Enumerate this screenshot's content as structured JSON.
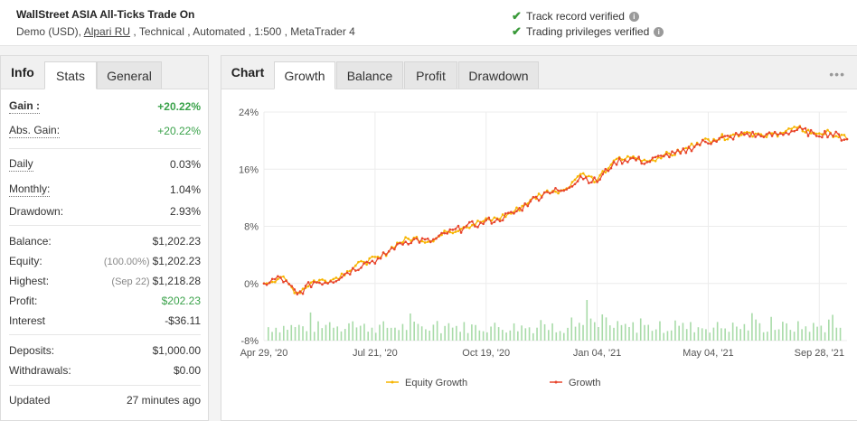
{
  "header": {
    "title": "WallStreet ASIA All-Ticks Trade On",
    "account_type": "Demo (USD), ",
    "broker": "Alpari RU",
    "details": " , Technical , Automated , 1:500 , MetaTrader 4",
    "verifications": [
      "Track record verified",
      "Trading privileges verified"
    ]
  },
  "left_tabs": [
    "Info",
    "Stats",
    "General"
  ],
  "stats": {
    "gain_label": "Gain :",
    "gain": "+20.22%",
    "abs_gain_label": "Abs. Gain:",
    "abs_gain": "+20.22%",
    "daily_label": "Daily",
    "daily": "0.03%",
    "monthly_label": "Monthly:",
    "monthly": "1.04%",
    "drawdown_label": "Drawdown:",
    "drawdown": "2.93%",
    "balance_label": "Balance:",
    "balance": "$1,202.23",
    "equity_label": "Equity:",
    "equity_pct": "(100.00%)",
    "equity": "$1,202.23",
    "highest_label": "Highest:",
    "highest_date": "(Sep 22)",
    "highest": "$1,218.28",
    "profit_label": "Profit:",
    "profit": "$202.23",
    "interest_label": "Interest",
    "interest": "-$36.11",
    "deposits_label": "Deposits:",
    "deposits": "$1,000.00",
    "withdrawals_label": "Withdrawals:",
    "withdrawals": "$0.00",
    "updated_label": "Updated",
    "updated": "27 minutes ago"
  },
  "chart_tabs": [
    "Chart",
    "Growth",
    "Balance",
    "Profit",
    "Drawdown"
  ],
  "menu_icon": "more-dots-icon",
  "colors": {
    "growth": "#e8452c",
    "equity": "#f7b500",
    "bars": "#a8dba8",
    "positive": "#3aa24a"
  },
  "chart_data": {
    "type": "line",
    "y_ticks": [
      "24%",
      "16%",
      "8%",
      "0%",
      "-8%"
    ],
    "ylim": [
      -8,
      24
    ],
    "x_ticks": [
      "Apr 29, '20",
      "Jul 21, '20",
      "Oct 19, '20",
      "Jan 04, '21",
      "May 04, '21",
      "Sep 28, '21"
    ],
    "x_indices": [
      0,
      1,
      2,
      3,
      4,
      5
    ],
    "legend": [
      "Equity Growth",
      "Growth"
    ],
    "legend_position": "bottom",
    "series": [
      {
        "name": "Growth",
        "x": [
          0,
          0.15,
          0.3,
          0.45,
          0.6,
          0.75,
          0.9,
          1.05,
          1.2,
          1.35,
          1.5,
          1.65,
          1.8,
          1.95,
          2.1,
          2.25,
          2.4,
          2.55,
          2.7,
          2.85,
          3.0,
          3.15,
          3.3,
          3.45,
          3.6,
          3.75,
          3.9,
          4.05,
          4.2,
          4.35,
          4.5,
          4.65,
          4.8,
          4.95,
          5.1,
          5.25
        ],
        "y": [
          0.0,
          0.8,
          -1.5,
          0.2,
          0.3,
          1.5,
          2.8,
          3.5,
          5.5,
          6.2,
          5.8,
          7.0,
          7.8,
          8.5,
          9.0,
          9.8,
          11.5,
          12.8,
          13.0,
          15.0,
          14.2,
          17.0,
          17.5,
          17.0,
          17.8,
          18.2,
          19.5,
          20.0,
          20.5,
          21.0,
          20.5,
          21.0,
          21.5,
          21.0,
          21.0,
          20.2
        ]
      },
      {
        "name": "Equity Growth",
        "x": [
          0,
          0.15,
          0.3,
          0.45,
          0.6,
          0.75,
          0.9,
          1.05,
          1.2,
          1.35,
          1.5,
          1.65,
          1.8,
          1.95,
          2.1,
          2.25,
          2.4,
          2.55,
          2.7,
          2.85,
          3.0,
          3.15,
          3.3,
          3.45,
          3.6,
          3.75,
          3.9,
          4.05,
          4.2,
          4.35,
          4.5,
          4.65,
          4.8,
          4.95,
          5.1,
          5.25
        ],
        "y": [
          0.0,
          0.9,
          -1.3,
          0.4,
          0.4,
          1.7,
          3.0,
          3.6,
          5.7,
          6.4,
          5.9,
          7.2,
          7.9,
          8.6,
          9.1,
          10.0,
          11.7,
          13.0,
          13.1,
          15.3,
          14.4,
          17.2,
          17.6,
          17.1,
          17.9,
          18.4,
          19.7,
          20.2,
          20.7,
          21.2,
          20.6,
          21.1,
          21.8,
          21.1,
          21.1,
          20.2
        ]
      }
    ]
  }
}
